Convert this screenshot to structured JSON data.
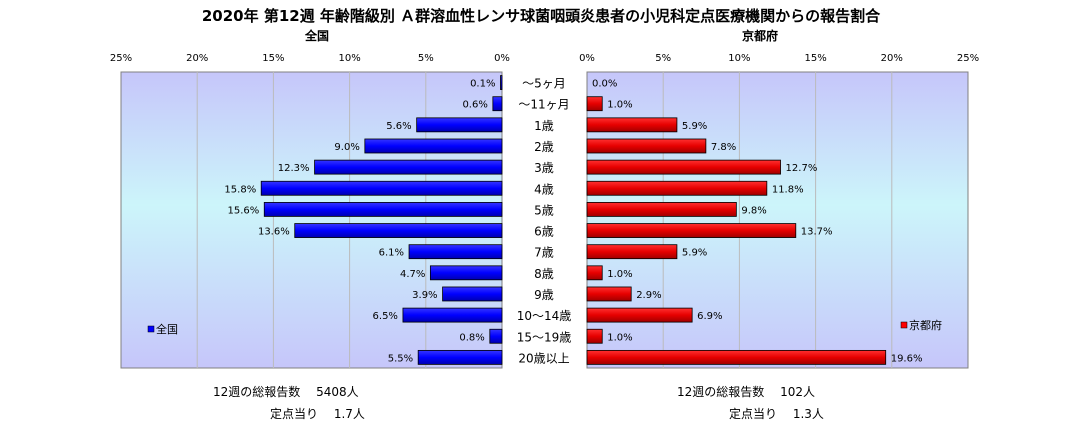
{
  "chart_data": {
    "type": "bar",
    "title": "2020年 第12週 年齢階級別 Ａ群溶血性レンサ球菌咽頭炎患者の小児科定点医療機関からの報告割合",
    "categories": [
      "～5ヶ月",
      "～11ヶ月",
      "1歳",
      "2歳",
      "3歳",
      "4歳",
      "5歳",
      "6歳",
      "7歳",
      "8歳",
      "9歳",
      "10～14歳",
      "15～19歳",
      "20歳以上"
    ],
    "left_panel": {
      "title": "全国",
      "xlim": [
        25,
        0
      ],
      "ticks": [
        "25%",
        "20%",
        "15%",
        "10%",
        "5%",
        "0%"
      ],
      "legend_label": "全国",
      "legend_position": "bottom-left",
      "color": "#0000ff",
      "values": [
        0.1,
        0.6,
        5.6,
        9.0,
        12.3,
        15.8,
        15.6,
        13.6,
        6.1,
        4.7,
        3.9,
        6.5,
        0.8,
        5.5
      ],
      "value_labels": [
        "0.1%",
        "0.6%",
        "5.6%",
        "9.0%",
        "12.3%",
        "15.8%",
        "15.6%",
        "13.6%",
        "6.1%",
        "4.7%",
        "3.9%",
        "6.5%",
        "0.8%",
        "5.5%"
      ]
    },
    "right_panel": {
      "title": "京都府",
      "xlim": [
        0,
        25
      ],
      "ticks": [
        "0%",
        "5%",
        "10%",
        "15%",
        "20%",
        "25%"
      ],
      "legend_label": "京都府",
      "legend_position": "bottom-right",
      "color": "#ff0000",
      "values": [
        0.0,
        1.0,
        5.9,
        7.8,
        12.7,
        11.8,
        9.8,
        13.7,
        5.9,
        1.0,
        2.9,
        6.9,
        1.0,
        19.6
      ],
      "value_labels": [
        "0.0%",
        "1.0%",
        "5.9%",
        "7.8%",
        "12.7%",
        "11.8%",
        "9.8%",
        "13.7%",
        "5.9%",
        "1.0%",
        "2.9%",
        "6.9%",
        "1.0%",
        "19.6%"
      ]
    },
    "grid": true
  },
  "footer": {
    "left_total": "12週の総報告数　 5408人",
    "left_per_site": "定点当り　 1.7人",
    "right_total": "12週の総報告数　 102人",
    "right_per_site": "定点当り　 1.3人"
  }
}
